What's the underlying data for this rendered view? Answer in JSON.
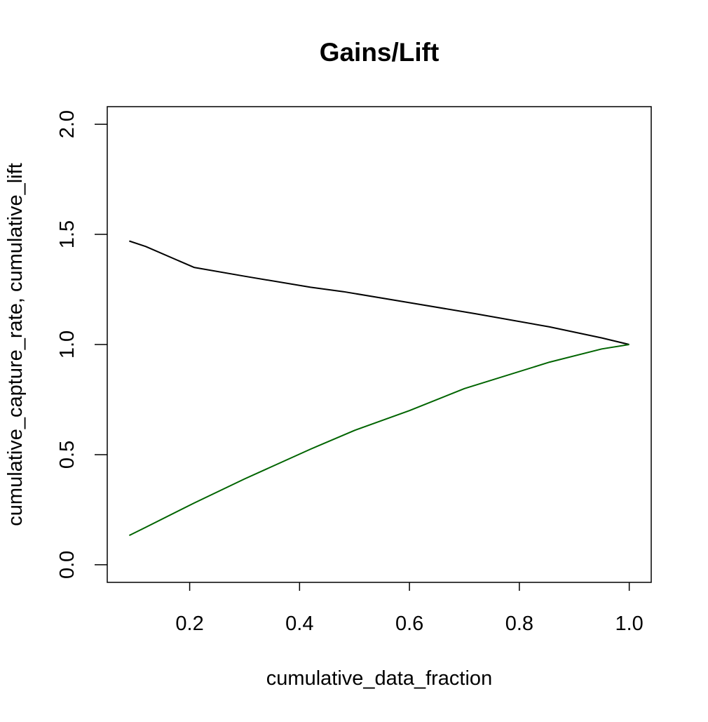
{
  "chart_data": {
    "type": "line",
    "title": "Gains/Lift",
    "xlabel": "cumulative_data_fraction",
    "ylabel": "cumulative_capture_rate, cumulative_lift",
    "xlim": [
      0.05,
      1.04
    ],
    "ylim": [
      -0.08,
      2.08
    ],
    "x_ticks": [
      0.2,
      0.4,
      0.6,
      0.8,
      1.0
    ],
    "x_tick_labels": [
      "0.2",
      "0.4",
      "0.6",
      "0.8",
      "1.0"
    ],
    "y_ticks": [
      0.0,
      0.5,
      1.0,
      1.5,
      2.0
    ],
    "y_tick_labels": [
      "0.0",
      "0.5",
      "1.0",
      "1.5",
      "2.0"
    ],
    "grid": false,
    "legend": "none",
    "series": [
      {
        "color": "#000000",
        "x": [
          0.09,
          0.12,
          0.208,
          0.3,
          0.42,
          0.48,
          0.6,
          0.72,
          0.855,
          0.95,
          1.0
        ],
        "y": [
          1.47,
          1.445,
          1.35,
          1.31,
          1.26,
          1.24,
          1.19,
          1.14,
          1.08,
          1.03,
          1.0
        ]
      },
      {
        "color": "#006400",
        "x": [
          0.09,
          0.12,
          0.208,
          0.3,
          0.42,
          0.5,
          0.6,
          0.7,
          0.855,
          0.95,
          1.0
        ],
        "y": [
          0.133,
          0.17,
          0.28,
          0.39,
          0.525,
          0.61,
          0.7,
          0.8,
          0.92,
          0.98,
          1.0
        ]
      }
    ]
  }
}
